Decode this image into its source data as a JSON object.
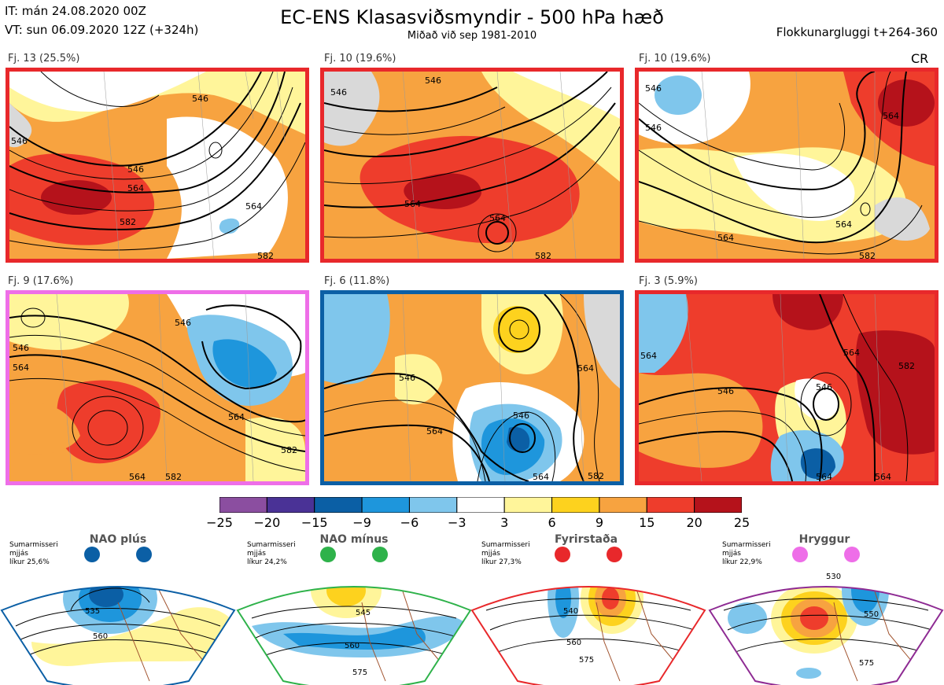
{
  "header": {
    "it": "IT: mán 24.08.2020 00Z",
    "vt": "VT: sun 06.09.2020 12Z  (+324h)",
    "title": "EC-ENS Klasasviðsmyndir - 500 hPa hæð",
    "subtitle": "Miðað við sep 1981-2010",
    "window": "Flokkunargluggi t+264-360",
    "cr": "CR"
  },
  "panels": [
    {
      "label": "Fj. 13 (25.5%)",
      "border": "#e8282b",
      "contours": [
        "546",
        "564",
        "582",
        "546",
        "564",
        "582",
        "546"
      ]
    },
    {
      "label": "Fj. 10 (19.6%)",
      "border": "#e8282b",
      "contours": [
        "546",
        "564",
        "564",
        "582",
        "546"
      ]
    },
    {
      "label": "Fj. 10 (19.6%)",
      "border": "#e8282b",
      "contours": [
        "546",
        "564",
        "564",
        "582",
        "564",
        "546"
      ]
    },
    {
      "label": "Fj. 9 (17.6%)",
      "border": "#ee6ee8",
      "contours": [
        "546",
        "564",
        "546",
        "564",
        "582",
        "564",
        "582"
      ]
    },
    {
      "label": "Fj. 6 (11.8%)",
      "border": "#0b5fa5",
      "contours": [
        "546",
        "564",
        "546",
        "564",
        "582",
        "564"
      ]
    },
    {
      "label": "Fj. 3 (5.9%)",
      "border": "#e8282b",
      "contours": [
        "546",
        "564",
        "564",
        "546",
        "582",
        "564",
        "564"
      ]
    }
  ],
  "colorbar": {
    "ticks": [
      "−25",
      "−20",
      "−15",
      "−9",
      "−6",
      "−3",
      "3",
      "6",
      "9",
      "15",
      "20",
      "25"
    ],
    "colors": [
      "#8b4ea0",
      "#4a3296",
      "#0b5fa5",
      "#1e96dc",
      "#7fc6ec",
      "#ffffff",
      "#fff59a",
      "#fdd21e",
      "#f7a340",
      "#ee3d2c",
      "#b5121b"
    ]
  },
  "regimes": [
    {
      "name": "NAO plús",
      "season": "Sumarmisseri",
      "smooth": "mjjás",
      "prob": "líkur 25,6%",
      "dot_color": "#0b5fa5",
      "border": "#0b5fa5",
      "contours": [
        "535",
        "560"
      ]
    },
    {
      "name": "NAO mínus",
      "season": "Sumarmisseri",
      "smooth": "mjjás",
      "prob": "líkur 24,2%",
      "dot_color": "#2eb24a",
      "border": "#2eb24a",
      "contours": [
        "545",
        "560",
        "575"
      ]
    },
    {
      "name": "Fyrirstaða",
      "season": "Sumarmisseri",
      "smooth": "mjjás",
      "prob": "líkur 27,3%",
      "dot_color": "#e8282b",
      "border": "#e8282b",
      "contours": [
        "540",
        "560",
        "575"
      ]
    },
    {
      "name": "Hryggur",
      "season": "Sumarmisseri",
      "smooth": "mjjás",
      "prob": "líkur 22,9%",
      "dot_color": "#ee6ee8",
      "border": "#8e2b93",
      "contours": [
        "530",
        "550",
        "575"
      ]
    }
  ]
}
